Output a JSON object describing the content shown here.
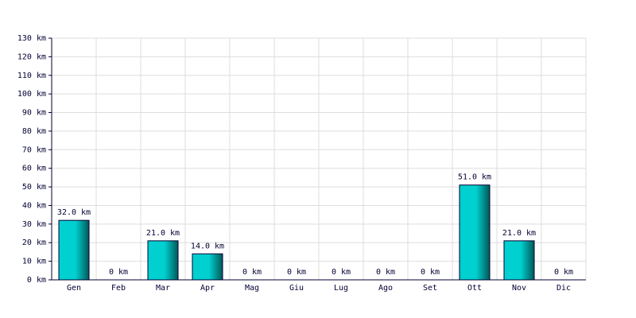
{
  "chart_data": {
    "type": "bar",
    "categories": [
      "Gen",
      "Feb",
      "Mar",
      "Apr",
      "Mag",
      "Giu",
      "Lug",
      "Ago",
      "Set",
      "Ott",
      "Nov",
      "Dic"
    ],
    "values": [
      32,
      0,
      21,
      14,
      0,
      0,
      0,
      0,
      0,
      51,
      21,
      0
    ],
    "value_labels": [
      "32.0 km",
      "0 km",
      "21.0 km",
      "14.0 km",
      "0 km",
      "0 km",
      "0 km",
      "0 km",
      "0 km",
      "51.0 km",
      "21.0 km",
      "0 km"
    ],
    "color": "#00d0d0",
    "ylim": [
      0,
      130
    ],
    "yticks": [
      {
        "value": 0,
        "label": "0 km"
      },
      {
        "value": 10,
        "label": "10 km"
      },
      {
        "value": 20,
        "label": "20 km"
      },
      {
        "value": 30,
        "label": "30 km"
      },
      {
        "value": 40,
        "label": "40 km"
      },
      {
        "value": 50,
        "label": "50 km"
      },
      {
        "value": 60,
        "label": "60 km"
      },
      {
        "value": 70,
        "label": "70 km"
      },
      {
        "value": 80,
        "label": "80 km"
      },
      {
        "value": 90,
        "label": "90 km"
      },
      {
        "value": 100,
        "label": "100 km"
      },
      {
        "value": 110,
        "label": "110 km"
      },
      {
        "value": 120,
        "label": "120 km"
      },
      {
        "value": 130,
        "label": "130 km"
      }
    ],
    "grid": true
  }
}
